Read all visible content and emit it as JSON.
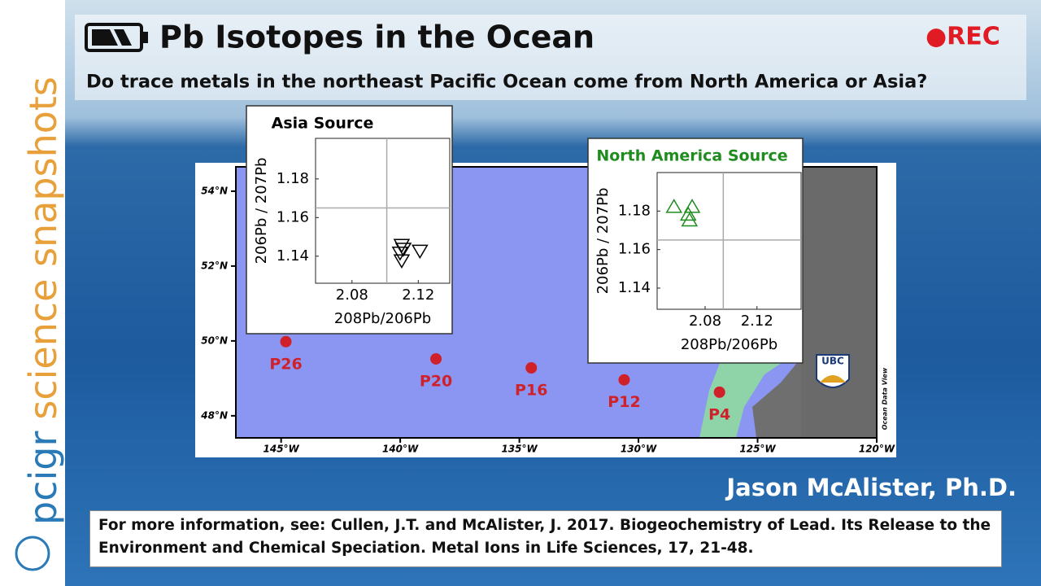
{
  "header": {
    "title": "Pb Isotopes in the Ocean",
    "rec": "●REC",
    "question": "Do trace metals in the northeast Pacific Ocean come from North America or Asia?"
  },
  "sidebar": {
    "brand": "pcigr",
    "tagline": "science snapshots"
  },
  "map": {
    "xlim": [
      -146.9,
      -120
    ],
    "ylim": [
      47.41,
      54.65
    ],
    "xticks": [
      {
        "value": -145,
        "label": "145°W"
      },
      {
        "value": -140,
        "label": "140°W"
      },
      {
        "value": -135,
        "label": "135°W"
      },
      {
        "value": -130,
        "label": "130°W"
      },
      {
        "value": -125,
        "label": "125°W"
      },
      {
        "value": -120,
        "label": "120°W"
      }
    ],
    "yticks": [
      {
        "value": 48,
        "label": "48°N"
      },
      {
        "value": 50,
        "label": "50°N"
      },
      {
        "value": 52,
        "label": "52°N"
      },
      {
        "value": 54,
        "label": "54°N"
      }
    ],
    "stations": [
      {
        "name": "P26",
        "lon": -144.8,
        "lat": 49.98
      },
      {
        "name": "P20",
        "lon": -138.5,
        "lat": 49.52
      },
      {
        "name": "P16",
        "lon": -134.5,
        "lat": 49.28
      },
      {
        "name": "P12",
        "lon": -130.6,
        "lat": 48.96
      },
      {
        "name": "P4",
        "lon": -126.6,
        "lat": 48.63
      }
    ],
    "station_color": "#d0202a",
    "logo": "UBC",
    "credit": "Ocean Data View"
  },
  "insets": [
    {
      "type": "scatter",
      "title": "Asia Source",
      "xlabel": "208Pb/206Pb",
      "ylabel": "206Pb / 207Pb",
      "color": "#000000",
      "marker": "down",
      "xlim": [
        2.058,
        2.139
      ],
      "ylim": [
        1.126,
        1.201
      ],
      "xticks": [
        2.08,
        2.12
      ],
      "yticks": [
        1.14,
        1.16,
        1.18
      ],
      "xgrid": [
        2.101
      ],
      "ygrid": [
        1.165
      ],
      "x": [
        2.11,
        2.111,
        2.109,
        2.121,
        2.11
      ],
      "y": [
        1.146,
        1.144,
        1.142,
        1.143,
        1.138
      ]
    },
    {
      "type": "scatter",
      "title": "North America Source",
      "xlabel": "208Pb/206Pb",
      "ylabel": "206Pb / 207Pb",
      "color": "#1e8c1e",
      "marker": "up",
      "xlim": [
        2.043,
        2.154
      ],
      "ylim": [
        1.129,
        1.2
      ],
      "xticks": [
        2.08,
        2.12
      ],
      "yticks": [
        1.14,
        1.16,
        1.18
      ],
      "xgrid": [
        2.094
      ],
      "ygrid": [
        1.165
      ],
      "x": [
        2.056,
        2.07,
        2.067,
        2.068
      ],
      "y": [
        1.182,
        1.182,
        1.178,
        1.175
      ]
    }
  ],
  "author": "Jason McAlister, Ph.D.",
  "citation": "For more information, see: Cullen, J.T. and McAlister, J. 2017. Biogeochemistry of Lead. Its Release to the Environment and Chemical Speciation. Metal Ions in Life Sciences, 17, 21-48."
}
